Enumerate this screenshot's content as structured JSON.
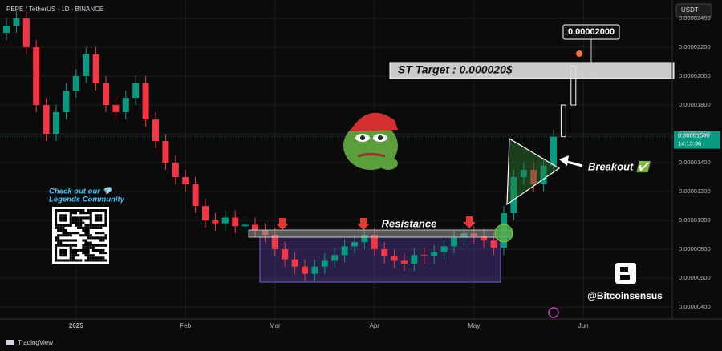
{
  "chart_data": {
    "type": "candlestick",
    "title": "PEPE / TetherUS · 1D · BINANCE",
    "currency": "USDT",
    "categories": [
      null,
      null,
      null,
      null,
      null,
      null,
      null,
      "2025",
      null,
      null,
      null,
      null,
      null,
      null,
      null,
      null,
      null,
      null,
      "Feb",
      null,
      null,
      null,
      null,
      null,
      null,
      null,
      null,
      "Mar",
      null,
      null,
      null,
      null,
      null,
      null,
      null,
      null,
      null,
      "Apr",
      null,
      null,
      null,
      null,
      null,
      null,
      null,
      null,
      null,
      "May",
      null,
      null,
      null,
      null,
      null,
      null,
      null,
      null,
      null,
      null,
      "Jun"
    ],
    "open": [
      2.3e-05,
      2.35e-05,
      2.4e-05,
      2.2e-05,
      1.8e-05,
      1.6e-05,
      1.75e-05,
      1.9e-05,
      2e-05,
      2.15e-05,
      1.95e-05,
      1.8e-05,
      1.75e-05,
      1.85e-05,
      1.95e-05,
      1.7e-05,
      1.55e-05,
      1.4e-05,
      1.3e-05,
      1.25e-05,
      1.1e-05,
      1e-05,
      9.8e-06,
      1.02e-05,
      9.6e-06,
      9.7e-06,
      9.3e-06,
      9e-06,
      8e-06,
      7.3e-06,
      6.8e-06,
      6.3e-06,
      6.8e-06,
      7.2e-06,
      7.6e-06,
      8.2e-06,
      8.5e-06,
      9e-06,
      8e-06,
      7.5e-06,
      7.2e-06,
      7e-06,
      7.6e-06,
      7.5e-06,
      7.8e-06,
      8.2e-06,
      8.8e-06,
      9.1e-06,
      8.9e-06,
      8.6e-06,
      8.1e-06,
      1.05e-05,
      1.3e-05,
      1.35e-05,
      1.25e-05,
      1.38e-05,
      null,
      null,
      null
    ],
    "high": [
      2.4e-05,
      2.45e-05,
      2.45e-05,
      2.25e-05,
      1.85e-05,
      1.8e-05,
      1.95e-05,
      2.05e-05,
      2.2e-05,
      2.2e-05,
      2e-05,
      1.85e-05,
      1.9e-05,
      2e-05,
      2e-05,
      1.75e-05,
      1.6e-05,
      1.45e-05,
      1.35e-05,
      1.3e-05,
      1.15e-05,
      1.05e-05,
      1.07e-05,
      1.07e-05,
      1.02e-05,
      1.02e-05,
      9.8e-06,
      9.5e-06,
      8.5e-06,
      7.8e-06,
      7.3e-06,
      7.3e-06,
      7.7e-06,
      8.1e-06,
      8.7e-06,
      9e-06,
      9.5e-06,
      9.5e-06,
      8.5e-06,
      8e-06,
      7.7e-06,
      8.1e-06,
      8.1e-06,
      8.3e-06,
      8.7e-06,
      9.3e-06,
      9.6e-06,
      9.6e-06,
      9.4e-06,
      9.1e-06,
      1.1e-05,
      1.35e-05,
      1.4e-05,
      1.4e-05,
      1.43e-05,
      1.63e-05,
      null,
      null,
      null
    ],
    "low": [
      2.25e-05,
      2.3e-05,
      2.15e-05,
      1.75e-05,
      1.55e-05,
      1.55e-05,
      1.7e-05,
      1.85e-05,
      1.95e-05,
      1.9e-05,
      1.75e-05,
      1.7e-05,
      1.7e-05,
      1.8e-05,
      1.65e-05,
      1.5e-05,
      1.35e-05,
      1.25e-05,
      1.2e-05,
      1.05e-05,
      9.5e-06,
      9.3e-06,
      9.3e-06,
      9.1e-06,
      9.1e-06,
      8.8e-06,
      8.5e-06,
      7.5e-06,
      6.8e-06,
      6.3e-06,
      5.8e-06,
      5.8e-06,
      6.3e-06,
      6.7e-06,
      7.1e-06,
      7.7e-06,
      8e-06,
      7.5e-06,
      7e-06,
      6.7e-06,
      6.5e-06,
      6.5e-06,
      7e-06,
      7e-06,
      7.3e-06,
      7.7e-06,
      8.3e-06,
      8.4e-06,
      8.1e-06,
      7.6e-06,
      7.6e-06,
      1e-05,
      1.25e-05,
      1.2e-05,
      1.2e-05,
      1.33e-05,
      null,
      null,
      null
    ],
    "close": [
      2.35e-05,
      2.4e-05,
      2.2e-05,
      1.8e-05,
      1.6e-05,
      1.75e-05,
      1.9e-05,
      2e-05,
      2.15e-05,
      1.95e-05,
      1.8e-05,
      1.75e-05,
      1.85e-05,
      1.95e-05,
      1.7e-05,
      1.55e-05,
      1.4e-05,
      1.3e-05,
      1.25e-05,
      1.1e-05,
      1e-05,
      9.8e-06,
      1.02e-05,
      9.6e-06,
      9.7e-06,
      9.3e-06,
      9e-06,
      8e-06,
      7.3e-06,
      6.8e-06,
      6.3e-06,
      6.8e-06,
      7.2e-06,
      7.6e-06,
      8.2e-06,
      8.5e-06,
      9e-06,
      8e-06,
      7.5e-06,
      7.2e-06,
      7e-06,
      7.6e-06,
      7.5e-06,
      7.8e-06,
      8.2e-06,
      8.8e-06,
      9.1e-06,
      8.9e-06,
      8.6e-06,
      8.1e-06,
      1.05e-05,
      1.3e-05,
      1.35e-05,
      1.25e-05,
      1.38e-05,
      1.58e-05,
      null,
      null,
      null
    ],
    "up_color": "#089981",
    "down_color": "#f23645",
    "projection": {
      "color": "#ffffff",
      "open": [
        null,
        null,
        null,
        null,
        null,
        null,
        null,
        null,
        null,
        null,
        null,
        null,
        null,
        null,
        null,
        null,
        null,
        null,
        null,
        null,
        null,
        null,
        null,
        null,
        null,
        null,
        null,
        null,
        null,
        null,
        null,
        null,
        null,
        null,
        null,
        null,
        null,
        null,
        null,
        null,
        null,
        null,
        null,
        null,
        null,
        null,
        null,
        null,
        null,
        null,
        null,
        null,
        null,
        null,
        null,
        null,
        1.58e-05,
        1.8e-05,
        null
      ],
      "close": [
        null,
        null,
        null,
        null,
        null,
        null,
        null,
        null,
        null,
        null,
        null,
        null,
        null,
        null,
        null,
        null,
        null,
        null,
        null,
        null,
        null,
        null,
        null,
        null,
        null,
        null,
        null,
        null,
        null,
        null,
        null,
        null,
        null,
        null,
        null,
        null,
        null,
        null,
        null,
        null,
        null,
        null,
        null,
        null,
        null,
        null,
        null,
        null,
        null,
        null,
        null,
        null,
        null,
        null,
        null,
        null,
        1.8e-05,
        2.07e-05,
        null
      ]
    },
    "ylim": [
      3.17e-06,
      2.528e-05
    ],
    "yticks": [
      {
        "value": 4e-06,
        "label": "0.00000400"
      },
      {
        "value": 6e-06,
        "label": "0.00000600"
      },
      {
        "value": 8e-06,
        "label": "0.00000800"
      },
      {
        "value": 1e-05,
        "label": "0.00001000"
      },
      {
        "value": 1.2e-05,
        "label": "0.00001200"
      },
      {
        "value": 1.4e-05,
        "label": "0.00001400"
      },
      {
        "value": 1.6e-05,
        "label": "0.00001600"
      },
      {
        "value": 1.8e-05,
        "label": "0.00001800"
      },
      {
        "value": 2e-05,
        "label": "0.00002000"
      },
      {
        "value": 2.2e-05,
        "label": "0.00002200"
      },
      {
        "value": 2.4e-05,
        "label": "0.00002400"
      }
    ],
    "grid": true,
    "last_price": {
      "value": 1.58e-05,
      "label": "0.00001580"
    },
    "countdown": "14:13:36",
    "target_callout": {
      "value": 2e-05,
      "label": "0.00002000"
    },
    "annotations": {
      "target": "ST Target : 0.000020$",
      "resistance": "Resistance",
      "breakout": "Breakout ✅",
      "promo": [
        "Check out our 💎",
        "Legends Community"
      ],
      "handle": "@Bitcoinsensus"
    },
    "brand": "TradingView"
  }
}
